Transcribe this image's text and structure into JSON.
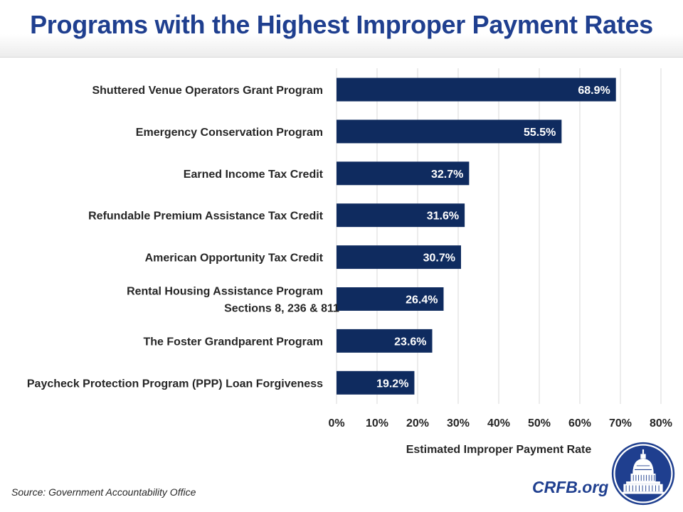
{
  "header": {
    "title": "Programs with the Highest Improper Payment Rates"
  },
  "footer": {
    "source": "Source: Government Accountability Office",
    "brand": "CRFB.org"
  },
  "colors": {
    "title": "#1f3f8f",
    "bar": "#0f2b5f",
    "grid": "#d9d9d9"
  },
  "chart_data": {
    "type": "bar",
    "orientation": "horizontal",
    "categories": [
      "Shuttered Venue Operators Grant Program",
      "Emergency Conservation Program",
      "Earned Income Tax Credit",
      "Refundable Premium Assistance Tax Credit",
      "American Opportunity Tax Credit",
      "Rental Housing Assistance Program\nSections 8, 236 & 811",
      "The Foster Grandparent Program",
      "Paycheck Protection Program (PPP) Loan Forgiveness"
    ],
    "values": [
      68.9,
      55.5,
      32.7,
      31.6,
      30.7,
      26.4,
      23.6,
      19.2
    ],
    "data_labels": [
      "68.9%",
      "55.5%",
      "32.7%",
      "31.6%",
      "30.7%",
      "26.4%",
      "23.6%",
      "19.2%"
    ],
    "xlabel": "Estimated Improper Payment Rate",
    "xlim": [
      0,
      80
    ],
    "xticks": [
      0,
      10,
      20,
      30,
      40,
      50,
      60,
      70,
      80
    ],
    "xtick_labels": [
      "0%",
      "10%",
      "20%",
      "30%",
      "40%",
      "50%",
      "60%",
      "70%",
      "80%"
    ],
    "grid": true,
    "legend": "none"
  }
}
